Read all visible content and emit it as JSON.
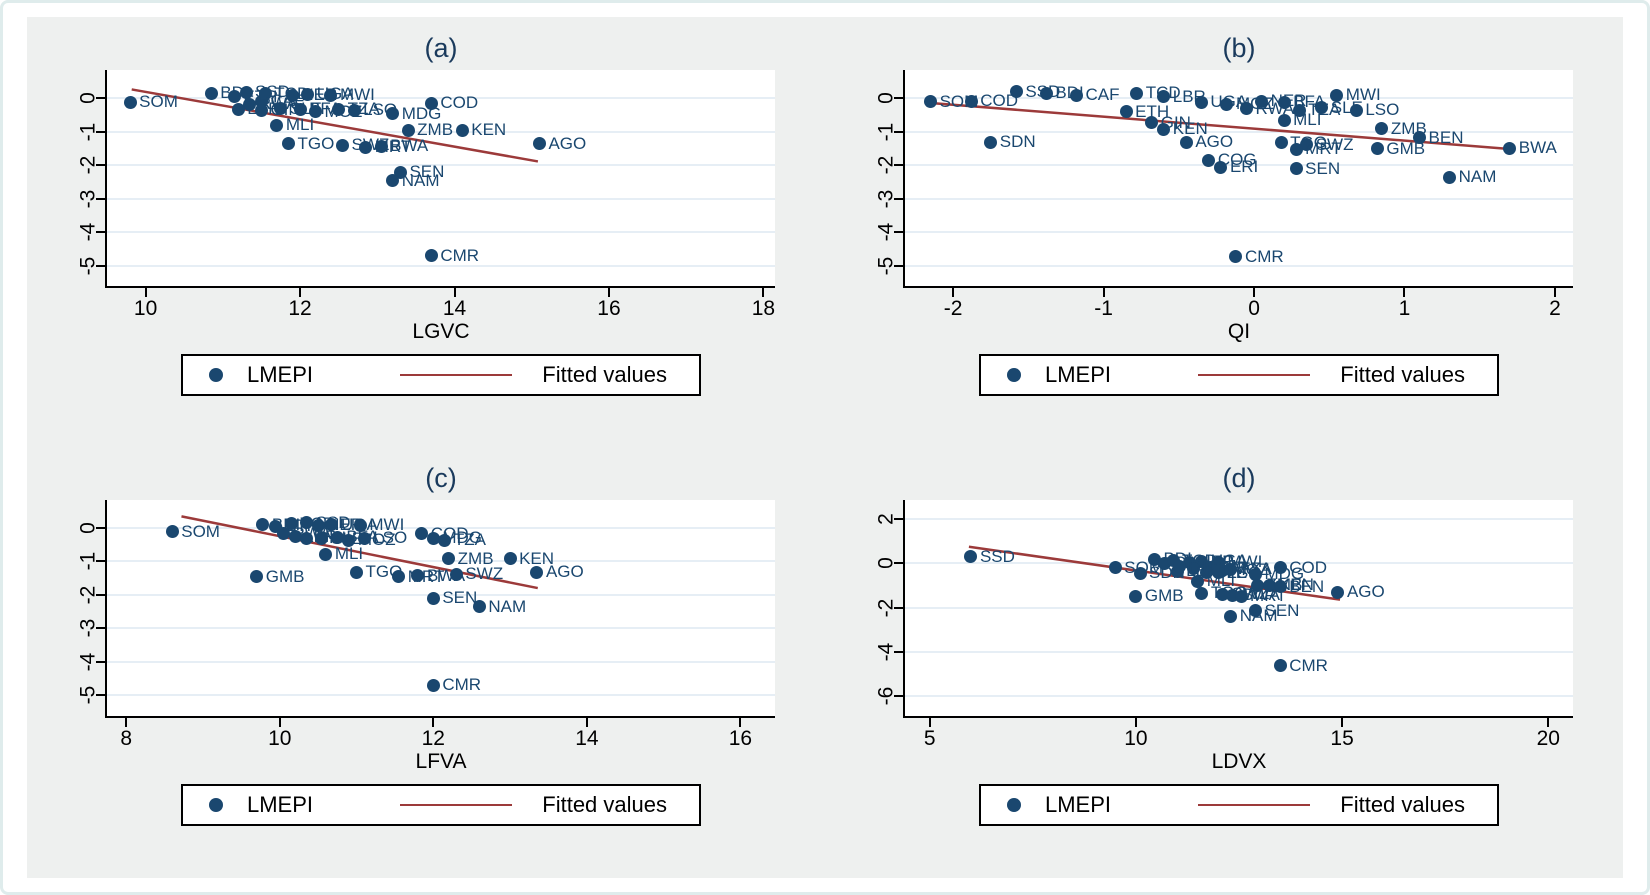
{
  "colors": {
    "marker": "#1a476f",
    "label": "#1a476f",
    "fitted_line": "#9c3a3a",
    "grid": "#e6eef5",
    "plot_bg": "#ffffff",
    "region_bg": "#eef0ef",
    "frame_border": "#dfecec",
    "title": "#1a3a5c",
    "axis": "#000000"
  },
  "chart_data": [
    {
      "type": "scatter",
      "title": "(a)",
      "xlabel": "LGVC",
      "x_ticks": [
        10,
        12,
        14,
        16,
        18
      ],
      "x_domain": [
        9.5,
        18.15
      ],
      "y_ticks": [
        0,
        -1,
        -2,
        -3,
        -4,
        -5
      ],
      "y_domain": [
        -5.6,
        0.85
      ],
      "legend": {
        "marker_label": "LMEPI",
        "line_label": "Fitted values"
      },
      "fitted_line": {
        "x1": 9.82,
        "y1": 0.27,
        "x2": 15.08,
        "y2": -1.88
      },
      "points": [
        [
          9.8,
          -0.12,
          "SOM"
        ],
        [
          10.85,
          0.15,
          "BDI"
        ],
        [
          11.3,
          0.18,
          "SSD"
        ],
        [
          11.15,
          0.05,
          "ETH"
        ],
        [
          11.5,
          -0.08,
          "CAF"
        ],
        [
          11.55,
          0.14,
          "TCD"
        ],
        [
          11.9,
          0.1,
          "NER"
        ],
        [
          12.1,
          0.12,
          "UGA"
        ],
        [
          12.4,
          0.1,
          "MWI"
        ],
        [
          11.35,
          -0.18,
          "RWA"
        ],
        [
          11.2,
          -0.32,
          "LBR"
        ],
        [
          11.5,
          -0.35,
          "GIN"
        ],
        [
          11.75,
          -0.3,
          "SLE"
        ],
        [
          12.0,
          -0.32,
          "BFA"
        ],
        [
          12.2,
          -0.4,
          "MOZ"
        ],
        [
          12.5,
          -0.32,
          "TZA"
        ],
        [
          12.7,
          -0.35,
          "LSO"
        ],
        [
          13.2,
          -0.45,
          "MDG"
        ],
        [
          13.7,
          -0.15,
          "COD"
        ],
        [
          11.7,
          -0.8,
          "MLI"
        ],
        [
          13.4,
          -0.95,
          "ZMB"
        ],
        [
          14.1,
          -0.95,
          "KEN"
        ],
        [
          11.85,
          -1.35,
          "TGO"
        ],
        [
          12.55,
          -1.4,
          "SWZ"
        ],
        [
          12.85,
          -1.45,
          "MRT"
        ],
        [
          13.05,
          -1.42,
          "BWA"
        ],
        [
          15.1,
          -1.35,
          "AGO"
        ],
        [
          13.3,
          -2.2,
          "SEN"
        ],
        [
          13.2,
          -2.45,
          "NAM"
        ],
        [
          13.7,
          -4.7,
          "CMR"
        ]
      ]
    },
    {
      "type": "scatter",
      "title": "(b)",
      "xlabel": "QI",
      "x_ticks": [
        -2,
        -1,
        0,
        1,
        2
      ],
      "x_domain": [
        -2.32,
        2.12
      ],
      "y_ticks": [
        0,
        -1,
        -2,
        -3,
        -4,
        -5
      ],
      "y_domain": [
        -5.6,
        0.85
      ],
      "legend": {
        "marker_label": "LMEPI",
        "line_label": "Fitted values"
      },
      "fitted_line": {
        "x1": -2.16,
        "y1": -0.13,
        "x2": 1.73,
        "y2": -1.52
      },
      "points": [
        [
          -2.15,
          -0.1,
          "SOM"
        ],
        [
          -1.88,
          -0.08,
          "COD"
        ],
        [
          -1.58,
          0.2,
          "SSD"
        ],
        [
          -1.38,
          0.15,
          "BDI"
        ],
        [
          -1.18,
          0.1,
          "CAF"
        ],
        [
          -1.75,
          -1.3,
          "SDN"
        ],
        [
          -0.78,
          0.16,
          "TCD"
        ],
        [
          -0.6,
          0.05,
          "LBR"
        ],
        [
          -0.85,
          -0.4,
          "ETH"
        ],
        [
          -0.68,
          -0.72,
          "GIN"
        ],
        [
          -0.6,
          -0.92,
          "KEN"
        ],
        [
          -0.35,
          -0.12,
          "UGA"
        ],
        [
          -0.18,
          -0.18,
          "MOZ"
        ],
        [
          -0.05,
          -0.3,
          "RWA"
        ],
        [
          0.05,
          -0.08,
          "NER"
        ],
        [
          0.2,
          -0.12,
          "BFA"
        ],
        [
          0.55,
          0.1,
          "MWI"
        ],
        [
          0.3,
          -0.35,
          "TZA"
        ],
        [
          0.45,
          -0.28,
          "SLE"
        ],
        [
          0.68,
          -0.35,
          "LSO"
        ],
        [
          0.2,
          -0.65,
          "MLI"
        ],
        [
          0.85,
          -0.9,
          "ZMB"
        ],
        [
          1.1,
          -1.18,
          "BEN"
        ],
        [
          -0.45,
          -1.3,
          "AGO"
        ],
        [
          0.18,
          -1.32,
          "TGO"
        ],
        [
          0.35,
          -1.38,
          "SWZ"
        ],
        [
          0.28,
          -1.52,
          "MRT"
        ],
        [
          0.82,
          -1.5,
          "GMB"
        ],
        [
          1.7,
          -1.48,
          "BWA"
        ],
        [
          -0.3,
          -1.85,
          "COG"
        ],
        [
          -0.22,
          -2.05,
          "ERI"
        ],
        [
          0.28,
          -2.1,
          "SEN"
        ],
        [
          1.3,
          -2.35,
          "NAM"
        ],
        [
          -0.12,
          -4.72,
          "CMR"
        ]
      ]
    },
    {
      "type": "scatter",
      "title": "(c)",
      "xlabel": "LFVA",
      "x_ticks": [
        8,
        10,
        12,
        14,
        16
      ],
      "x_domain": [
        7.75,
        16.45
      ],
      "y_ticks": [
        0,
        -1,
        -2,
        -3,
        -4,
        -5
      ],
      "y_domain": [
        -5.6,
        0.85
      ],
      "legend": {
        "marker_label": "LMEPI",
        "line_label": "Fitted values"
      },
      "fitted_line": {
        "x1": 8.72,
        "y1": 0.36,
        "x2": 13.36,
        "y2": -1.78
      },
      "points": [
        [
          8.6,
          -0.12,
          "SOM"
        ],
        [
          9.78,
          0.1,
          "BDI"
        ],
        [
          9.95,
          0.05,
          "ETH"
        ],
        [
          10.15,
          0.12,
          "TCD"
        ],
        [
          10.35,
          0.16,
          "SSD"
        ],
        [
          10.5,
          0.08,
          "NER"
        ],
        [
          10.68,
          0.1,
          "UGA"
        ],
        [
          11.05,
          0.08,
          "MWI"
        ],
        [
          10.05,
          -0.18,
          "RWA"
        ],
        [
          10.2,
          -0.26,
          "LBR"
        ],
        [
          10.35,
          -0.3,
          "GIN"
        ],
        [
          10.55,
          -0.32,
          "SLE"
        ],
        [
          10.75,
          -0.28,
          "BFA"
        ],
        [
          10.9,
          -0.36,
          "MOZ"
        ],
        [
          11.1,
          -0.3,
          "LSO"
        ],
        [
          11.85,
          -0.18,
          "COD"
        ],
        [
          12.0,
          -0.3,
          "MDG"
        ],
        [
          12.15,
          -0.36,
          "TZA"
        ],
        [
          10.6,
          -0.78,
          "MLI"
        ],
        [
          9.7,
          -1.45,
          "GMB"
        ],
        [
          11.0,
          -1.32,
          "TGO"
        ],
        [
          11.55,
          -1.45,
          "MRT"
        ],
        [
          11.8,
          -1.42,
          "BWA"
        ],
        [
          12.3,
          -1.38,
          "SWZ"
        ],
        [
          12.2,
          -0.92,
          "ZMB"
        ],
        [
          13.0,
          -0.92,
          "KEN"
        ],
        [
          13.35,
          -1.32,
          "AGO"
        ],
        [
          12.0,
          -2.1,
          "SEN"
        ],
        [
          12.6,
          -2.35,
          "NAM"
        ],
        [
          12.0,
          -4.7,
          "CMR"
        ]
      ]
    },
    {
      "type": "scatter",
      "title": "(d)",
      "xlabel": "LDVX",
      "x_ticks": [
        5,
        10,
        15,
        20
      ],
      "x_domain": [
        4.4,
        20.6
      ],
      "y_ticks": [
        2,
        0,
        -2,
        -4,
        -6
      ],
      "y_domain": [
        -6.9,
        2.9
      ],
      "legend": {
        "marker_label": "LMEPI",
        "line_label": "Fitted values"
      },
      "fitted_line": {
        "x1": 5.95,
        "y1": 0.78,
        "x2": 14.95,
        "y2": -1.62
      },
      "points": [
        [
          6.0,
          0.3,
          "SSD"
        ],
        [
          9.5,
          -0.2,
          "SOM"
        ],
        [
          10.1,
          -0.45,
          "SDN"
        ],
        [
          10.0,
          -1.5,
          "GMB"
        ],
        [
          10.45,
          0.2,
          "BDI"
        ],
        [
          10.7,
          0.0,
          "CAF"
        ],
        [
          10.9,
          0.12,
          "TCD"
        ],
        [
          11.3,
          0.06,
          "NER"
        ],
        [
          11.6,
          0.1,
          "UGA"
        ],
        [
          12.0,
          0.05,
          "MWI"
        ],
        [
          11.4,
          -0.25,
          "RWA"
        ],
        [
          11.8,
          -0.2,
          "BFA"
        ],
        [
          11.7,
          -0.42,
          "SLE"
        ],
        [
          11.0,
          -0.35,
          "LBR"
        ],
        [
          12.1,
          -0.3,
          "MOZ"
        ],
        [
          12.3,
          -0.26,
          "TZA"
        ],
        [
          12.0,
          -0.42,
          "LSO"
        ],
        [
          11.05,
          -0.15,
          "ETH"
        ],
        [
          12.9,
          -0.5,
          "MDG"
        ],
        [
          13.5,
          -0.2,
          "COD"
        ],
        [
          11.5,
          -0.8,
          "MLI"
        ],
        [
          12.95,
          -1.0,
          "ZMB"
        ],
        [
          13.25,
          -1.0,
          "KEN"
        ],
        [
          13.5,
          -1.05,
          "BEN"
        ],
        [
          11.6,
          -1.35,
          "TGO"
        ],
        [
          12.1,
          -1.4,
          "SWZ"
        ],
        [
          12.35,
          -1.45,
          "BWA"
        ],
        [
          12.55,
          -1.5,
          "MRT"
        ],
        [
          14.9,
          -1.3,
          "AGO"
        ],
        [
          12.9,
          -2.15,
          "SEN"
        ],
        [
          12.3,
          -2.4,
          "NAM"
        ],
        [
          13.5,
          -4.65,
          "CMR"
        ]
      ]
    }
  ]
}
